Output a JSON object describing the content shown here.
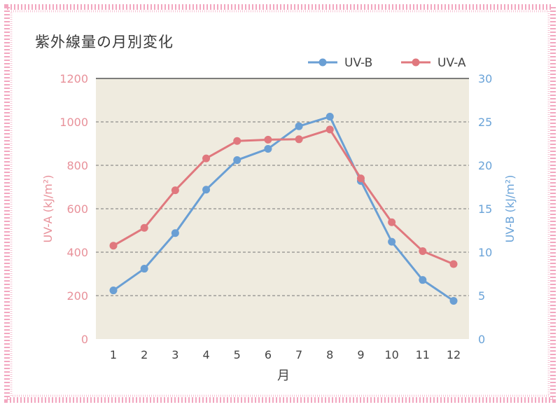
{
  "chart_data": {
    "type": "line",
    "title": "紫外線量の月別変化",
    "xlabel": "月",
    "y_left_label": "UV-A (kJ/m²)",
    "y_right_label": "UV-B (kJ/m²)",
    "categories": [
      "1",
      "2",
      "3",
      "4",
      "5",
      "6",
      "7",
      "8",
      "9",
      "10",
      "11",
      "12"
    ],
    "y_left_range": [
      0,
      1200
    ],
    "y_left_ticks": [
      "0",
      "200",
      "400",
      "600",
      "800",
      "1000",
      "1200"
    ],
    "y_right_range": [
      0,
      30
    ],
    "y_right_ticks": [
      "0",
      "5",
      "10",
      "15",
      "20",
      "25",
      "30"
    ],
    "grid": "horizontal-dashed",
    "legend_position": "top-right",
    "series": [
      {
        "name": "UV-B",
        "axis": "right",
        "color": "#6a9fd4",
        "values": [
          5.6,
          8.1,
          12.2,
          17.2,
          20.6,
          21.9,
          24.5,
          25.6,
          18.2,
          11.2,
          6.8,
          4.4
        ]
      },
      {
        "name": "UV-A",
        "axis": "left",
        "color": "#e0787e",
        "values": [
          430,
          512,
          685,
          832,
          912,
          918,
          920,
          965,
          740,
          538,
          405,
          345
        ]
      }
    ],
    "colors": {
      "plot_bg": "#efebdf",
      "left_axis_text": "#e8919a",
      "right_axis_text": "#6aa3d8",
      "frame": "#f2a7c0"
    }
  }
}
